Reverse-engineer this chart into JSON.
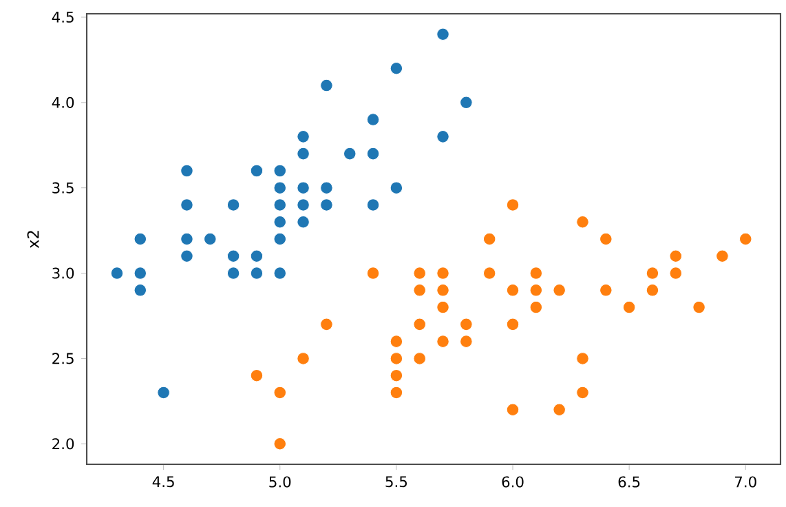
{
  "chart_data": {
    "type": "scatter",
    "ylabel": "x2",
    "xlim": [
      4.17,
      7.15
    ],
    "ylim": [
      1.88,
      4.52
    ],
    "xticks": [
      4.5,
      {
        "value": 5,
        "label": "5.0"
      },
      5.5,
      {
        "value": 6,
        "label": "6.0"
      },
      6.5,
      {
        "value": 7,
        "label": "7.0"
      }
    ],
    "yticks": [
      {
        "value": 2,
        "label": "2.0"
      },
      2.5,
      {
        "value": 3,
        "label": "3.0"
      },
      3.5,
      {
        "value": 4,
        "label": "4.0"
      },
      4.5
    ],
    "series": [
      {
        "color": "#1f77b4",
        "x": [
          4.3,
          4.4,
          4.4,
          4.4,
          4.5,
          4.6,
          4.6,
          4.6,
          4.6,
          4.7,
          4.8,
          4.8,
          4.8,
          4.9,
          4.9,
          4.9,
          5.0,
          5.0,
          5.0,
          5.0,
          5.0,
          5.0,
          5.1,
          5.1,
          5.1,
          5.1,
          5.1,
          5.2,
          5.2,
          5.2,
          5.3,
          5.4,
          5.4,
          5.4,
          5.5,
          5.5,
          5.7,
          5.7,
          5.8
        ],
        "values": [
          3.0,
          3.0,
          3.2,
          2.9,
          2.3,
          3.1,
          3.2,
          3.4,
          3.6,
          3.2,
          3.0,
          3.1,
          3.4,
          3.0,
          3.1,
          3.6,
          3.0,
          3.2,
          3.3,
          3.4,
          3.5,
          3.6,
          3.3,
          3.4,
          3.5,
          3.7,
          3.8,
          3.4,
          3.5,
          4.1,
          3.7,
          3.4,
          3.7,
          3.9,
          3.5,
          4.2,
          3.8,
          4.4,
          4.0
        ]
      },
      {
        "color": "#ff7f0e",
        "x": [
          4.9,
          5.0,
          5.0,
          5.1,
          5.2,
          5.4,
          5.5,
          5.5,
          5.5,
          5.5,
          5.6,
          5.6,
          5.6,
          5.6,
          5.7,
          5.7,
          5.7,
          5.7,
          5.8,
          5.8,
          5.9,
          5.9,
          6.0,
          6.0,
          6.0,
          6.0,
          6.1,
          6.1,
          6.1,
          6.2,
          6.2,
          6.3,
          6.3,
          6.3,
          6.4,
          6.4,
          6.5,
          6.6,
          6.6,
          6.7,
          6.7,
          6.8,
          6.9,
          7.0
        ],
        "values": [
          2.4,
          2.0,
          2.3,
          2.5,
          2.7,
          3.0,
          2.3,
          2.4,
          2.5,
          2.6,
          2.5,
          2.7,
          2.9,
          3.0,
          2.6,
          2.8,
          2.9,
          3.0,
          2.6,
          2.7,
          3.0,
          3.2,
          2.2,
          2.7,
          2.9,
          3.4,
          2.8,
          2.9,
          3.0,
          2.2,
          2.9,
          2.3,
          2.5,
          3.3,
          2.9,
          3.2,
          2.8,
          2.9,
          3.0,
          3.0,
          3.1,
          2.8,
          3.1,
          3.2
        ]
      }
    ]
  }
}
